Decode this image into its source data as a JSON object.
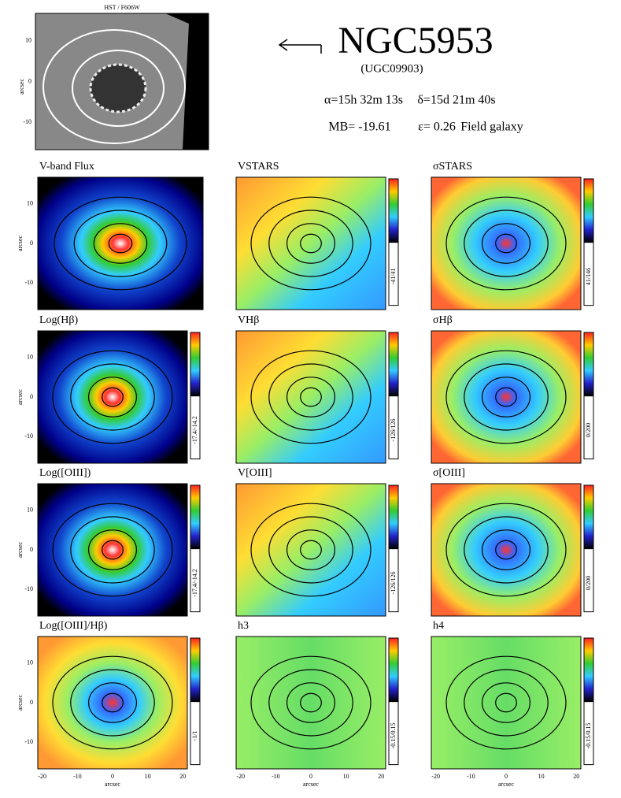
{
  "header": {
    "image_title": "HST / F606W",
    "name": "NGC5953",
    "alt_name": "(UGC09903)",
    "ra": "α=15h 32m 13s",
    "dec": "δ=15d 21m 40s",
    "magnitude": "MB= -19.61",
    "ellipticity": "ε= 0.26",
    "environment": "Field galaxy"
  },
  "axes": {
    "y_ticks": [
      "10",
      "0",
      "-10"
    ],
    "x_ticks": [
      "-20",
      "-10",
      "0",
      "10",
      "20"
    ],
    "axis_label": "arcsec"
  },
  "panels": [
    {
      "title": "V-band Flux"
    },
    {
      "title": "VSTARS",
      "range": "-41/41"
    },
    {
      "title": "σSTARS",
      "range": "41/146"
    },
    {
      "title": "Log(Hβ)",
      "range": "-17.4/-14.2"
    },
    {
      "title": "VHβ",
      "range": "-126/126"
    },
    {
      "title": "σHβ",
      "range": "0/200"
    },
    {
      "title": "Log([OIII])",
      "range": "-17.4/-14.2"
    },
    {
      "title": "V[OIII]",
      "range": "-126/126"
    },
    {
      "title": "σ[OIII]",
      "range": "0/200"
    },
    {
      "title": "Log([OIII]/Hβ)",
      "range": "-1/1"
    },
    {
      "title": "h3",
      "range": "-0.15/0.15"
    },
    {
      "title": "h4",
      "range": "-0.15/0.15"
    }
  ]
}
